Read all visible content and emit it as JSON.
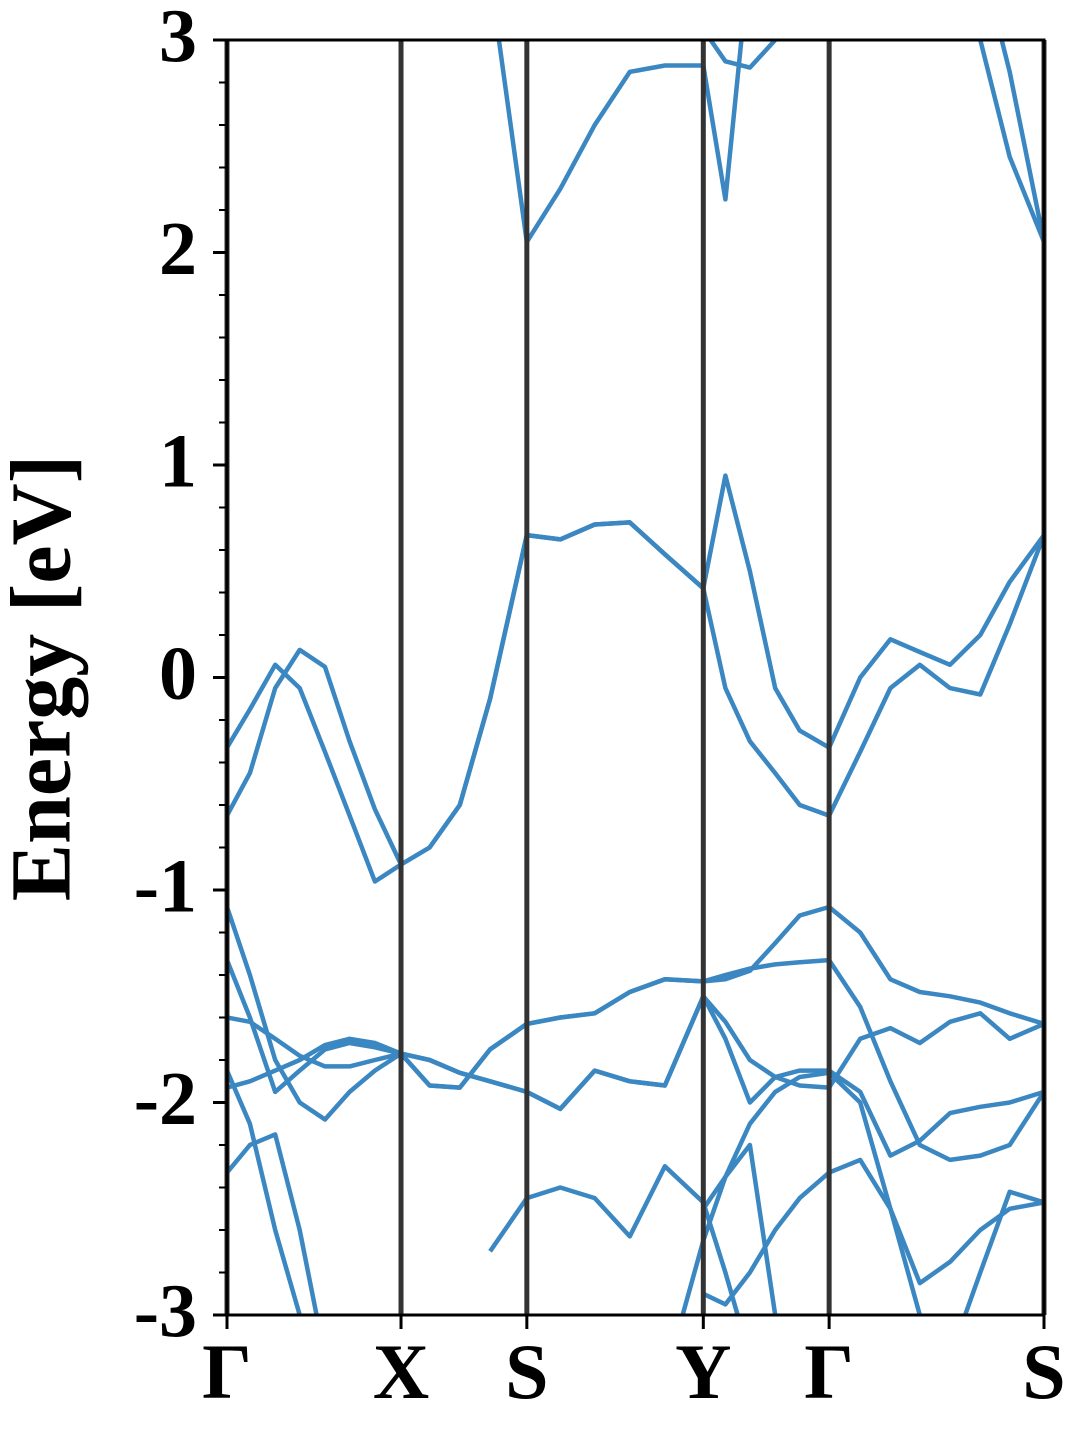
{
  "chart_data": {
    "type": "line",
    "ylabel": "Energy [eV]",
    "x": [
      0,
      0.028,
      0.059,
      0.089,
      0.12,
      0.15,
      0.181,
      0.213,
      0.248,
      0.285,
      0.322,
      0.367,
      0.408,
      0.45,
      0.493,
      0.536,
      0.583,
      0.61,
      0.64,
      0.671,
      0.701,
      0.737,
      0.775,
      0.812,
      0.848,
      0.885,
      0.922,
      0.958,
      1.0
    ],
    "xlim": [
      0,
      1.0
    ],
    "xticks": [
      {
        "value": 0,
        "label": "Γ"
      },
      {
        "value": 0.213,
        "label": "X"
      },
      {
        "value": 0.367,
        "label": "S"
      },
      {
        "value": 0.583,
        "label": "Y"
      },
      {
        "value": 0.737,
        "label": "Γ"
      },
      {
        "value": 1.0,
        "label": "S"
      }
    ],
    "ylim": [
      -3,
      3
    ],
    "yticks": [
      -3,
      -2,
      -1,
      0,
      1,
      2,
      3
    ],
    "yminorticks": [
      -2.8,
      -2.6,
      -2.4,
      -2.2,
      -1.8,
      -1.6,
      -1.4,
      -1.2,
      -0.8,
      -0.6,
      -0.4,
      -0.2,
      0.2,
      0.4,
      0.6,
      0.8,
      1.2,
      1.4,
      1.6,
      1.8,
      2.2,
      2.4,
      2.6,
      2.8
    ],
    "xgrid": true,
    "grid_color": "#333333",
    "series": [
      {
        "color": "#3b87c2",
        "values": [
          -0.33,
          -0.15,
          0.06,
          -0.05,
          -0.35,
          -0.65,
          -0.96,
          -0.88,
          -0.8,
          -0.6,
          -0.1,
          0.67,
          0.65,
          0.72,
          0.73,
          0.58,
          0.42,
          0.95,
          0.5,
          -0.05,
          -0.25,
          -0.33,
          0.0,
          0.18,
          0.12,
          0.06,
          0.2,
          0.45,
          0.67
        ]
      },
      {
        "color": "#3b87c2",
        "values": [
          -0.65,
          -0.45,
          -0.05,
          0.13,
          0.05,
          -0.3,
          -0.62,
          -0.88,
          -0.8,
          -0.6,
          -0.1,
          0.67,
          0.65,
          0.72,
          0.73,
          0.58,
          0.42,
          -0.05,
          -0.3,
          -0.45,
          -0.6,
          -0.65,
          -0.35,
          -0.05,
          0.06,
          -0.05,
          -0.08,
          0.25,
          0.67
        ]
      },
      {
        "color": "#3b87c2",
        "values": [
          null,
          null,
          null,
          null,
          null,
          null,
          null,
          null,
          null,
          null,
          3.3,
          2.05,
          2.3,
          2.6,
          2.85,
          2.88,
          2.88,
          2.25,
          3.4,
          null,
          null,
          null,
          null,
          null,
          null,
          null,
          null,
          null,
          null
        ]
      },
      {
        "color": "#3b87c2",
        "values": [
          null,
          null,
          null,
          null,
          null,
          null,
          null,
          null,
          null,
          null,
          null,
          null,
          null,
          null,
          null,
          null,
          3.05,
          2.9,
          2.87,
          3.0,
          3.3,
          null,
          null,
          null,
          null,
          null,
          null,
          null,
          null
        ]
      },
      {
        "color": "#3b87c2",
        "values": [
          null,
          null,
          null,
          null,
          null,
          null,
          null,
          null,
          null,
          null,
          null,
          null,
          null,
          null,
          null,
          null,
          null,
          null,
          null,
          null,
          null,
          null,
          null,
          null,
          null,
          3.5,
          3.0,
          2.45,
          2.05
        ]
      },
      {
        "color": "#3b87c2",
        "values": [
          null,
          null,
          null,
          null,
          null,
          null,
          null,
          null,
          null,
          null,
          null,
          null,
          null,
          null,
          null,
          null,
          null,
          null,
          null,
          null,
          null,
          null,
          null,
          null,
          null,
          null,
          3.4,
          2.85,
          2.05
        ]
      },
      {
        "color": "#3b87c2",
        "values": [
          -1.08,
          -1.4,
          -1.8,
          -2.0,
          -2.08,
          -1.95,
          -1.85,
          -1.77,
          -1.92,
          -1.93,
          -1.75,
          -1.63,
          -1.6,
          -1.58,
          -1.48,
          -1.42,
          -1.43,
          -1.4,
          -1.37,
          -1.35,
          -1.34,
          -1.33,
          -1.55,
          -1.9,
          -2.2,
          -2.27,
          -2.25,
          -2.2,
          -1.95
        ]
      },
      {
        "color": "#3b87c2",
        "values": [
          -1.33,
          -1.6,
          -1.95,
          -1.85,
          -1.75,
          -1.72,
          -1.74,
          -1.77,
          -1.92,
          -1.93,
          -1.75,
          -1.63,
          -1.6,
          -1.58,
          -1.48,
          -1.42,
          -1.43,
          -1.42,
          -1.38,
          -1.25,
          -1.12,
          -1.08,
          -1.2,
          -1.42,
          -1.48,
          -1.5,
          -1.53,
          -1.58,
          -1.63
        ]
      },
      {
        "color": "#3b87c2",
        "values": [
          -1.6,
          -1.62,
          -1.7,
          -1.78,
          -1.83,
          -1.83,
          -1.8,
          -1.77,
          -1.8,
          -1.86,
          -1.9,
          -1.95,
          -2.03,
          -1.85,
          -1.9,
          -1.92,
          -1.5,
          -1.7,
          -2.0,
          -1.88,
          -1.85,
          -1.85,
          -1.95,
          -2.25,
          -2.18,
          -2.05,
          -2.02,
          -2.0,
          -1.95
        ]
      },
      {
        "color": "#3b87c2",
        "values": [
          -1.93,
          -1.9,
          -1.85,
          -1.8,
          -1.73,
          -1.7,
          -1.72,
          -1.77,
          -1.8,
          -1.86,
          -1.9,
          -1.95,
          -2.03,
          -1.85,
          -1.9,
          -1.92,
          -1.5,
          -1.62,
          -1.8,
          -1.88,
          -1.92,
          -1.93,
          -1.7,
          -1.65,
          -1.72,
          -1.62,
          -1.58,
          -1.7,
          -1.63
        ]
      },
      {
        "color": "#3b87c2",
        "values": [
          -1.85,
          -2.1,
          -2.6,
          -3.0,
          -3.4,
          null,
          null,
          null,
          null,
          null,
          -2.7,
          -2.45,
          -2.4,
          -2.45,
          -2.63,
          -2.3,
          -2.47,
          -2.8,
          -3.2,
          null,
          null,
          null,
          null,
          null,
          null,
          null,
          null,
          null,
          null
        ]
      },
      {
        "color": "#3b87c2",
        "values": [
          -2.33,
          -2.2,
          -2.15,
          -2.6,
          -3.2,
          null,
          null,
          null,
          null,
          null,
          null,
          null,
          null,
          null,
          null,
          -3.3,
          -2.65,
          -2.35,
          -2.1,
          -1.95,
          -1.88,
          -1.86,
          -2.0,
          -2.5,
          -3.0,
          -3.5,
          null,
          null,
          null
        ]
      },
      {
        "color": "#3b87c2",
        "values": [
          null,
          null,
          null,
          null,
          null,
          null,
          null,
          null,
          null,
          null,
          null,
          null,
          null,
          null,
          null,
          null,
          -2.5,
          -2.35,
          -2.2,
          -3.0,
          null,
          null,
          null,
          null,
          null,
          null,
          null,
          null,
          null
        ]
      },
      {
        "color": "#3b87c2",
        "values": [
          null,
          null,
          null,
          null,
          null,
          null,
          null,
          null,
          null,
          null,
          null,
          null,
          null,
          null,
          null,
          null,
          -2.9,
          -2.95,
          -2.8,
          -2.6,
          -2.45,
          -2.33,
          -2.27,
          -2.5,
          -2.85,
          -2.75,
          -2.6,
          -2.5,
          -2.47
        ]
      },
      {
        "color": "#3b87c2",
        "values": [
          null,
          null,
          null,
          null,
          null,
          null,
          null,
          null,
          null,
          null,
          null,
          null,
          null,
          null,
          null,
          null,
          null,
          null,
          null,
          null,
          null,
          null,
          null,
          null,
          null,
          -3.2,
          -2.8,
          -2.42,
          -2.47
        ]
      }
    ]
  }
}
